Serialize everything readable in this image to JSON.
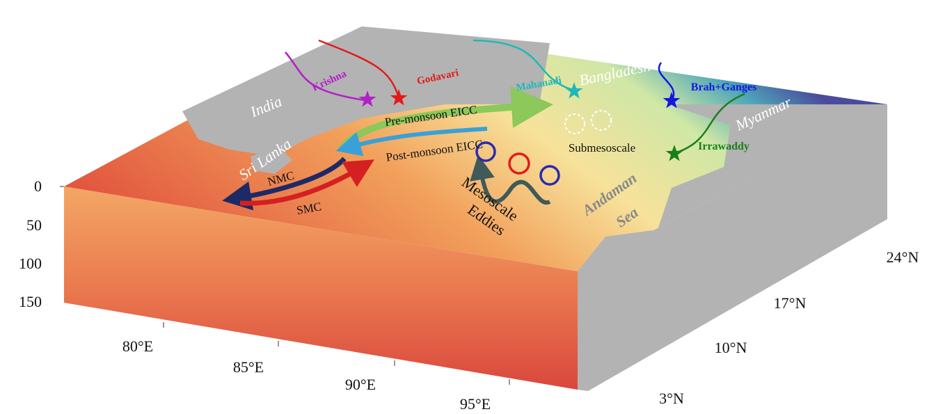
{
  "depth_axis": {
    "ticks": [
      "0",
      "50",
      "100",
      "150"
    ]
  },
  "longitude_axis": {
    "ticks": [
      "80°E",
      "85°E",
      "90°E",
      "95°E"
    ]
  },
  "latitude_axis": {
    "ticks": [
      "3°N",
      "10°N",
      "17°N",
      "24°N"
    ]
  },
  "regions": {
    "india": "India",
    "sri_lanka": "Sri Lanka",
    "bangladesh": "Bangladesh",
    "myanmar": "Myanmar",
    "andaman_sea": [
      "Andaman",
      "Sea"
    ]
  },
  "rivers": {
    "krishna": "Krishna",
    "godavari": "Godavari",
    "mahanadi": "Mahanadi",
    "brah_ganges": "Brah+Ganges",
    "irrawaddy": "Irrawaddy"
  },
  "currents": {
    "pre_monsoon": "Pre-monsoon EICC",
    "post_monsoon": "Post-monsoon EICC",
    "nmc": "NMC",
    "smc": "SMC"
  },
  "features": {
    "submesoscale": "Submesoscale",
    "mesoscale": [
      "Mesoscale",
      "Eddies"
    ]
  }
}
